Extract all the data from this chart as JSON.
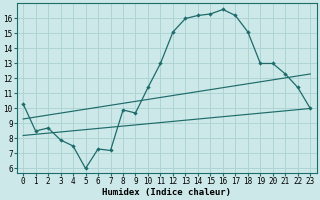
{
  "xlabel": "Humidex (Indice chaleur)",
  "bg_color": "#cce8e8",
  "line_color": "#1e6b6b",
  "grid_color": "#aed4d4",
  "xlim": [
    -0.5,
    23.5
  ],
  "ylim": [
    5.7,
    17.0
  ],
  "yticks": [
    6,
    7,
    8,
    9,
    10,
    11,
    12,
    13,
    14,
    15,
    16
  ],
  "xticks": [
    0,
    1,
    2,
    3,
    4,
    5,
    6,
    7,
    8,
    9,
    10,
    11,
    12,
    13,
    14,
    15,
    16,
    17,
    18,
    19,
    20,
    21,
    22,
    23
  ],
  "line1_x": [
    0,
    1,
    2,
    3,
    4,
    5,
    6,
    7,
    8,
    9,
    10,
    11,
    12,
    13,
    14,
    15,
    16,
    17,
    18,
    19,
    20,
    21,
    22,
    23
  ],
  "line1_y": [
    10.3,
    8.5,
    8.7,
    7.9,
    7.5,
    6.0,
    7.3,
    7.2,
    9.9,
    9.7,
    11.4,
    13.0,
    15.1,
    16.0,
    16.2,
    16.3,
    16.6,
    16.2,
    15.1,
    13.0,
    13.0,
    12.3,
    11.4,
    10.0
  ],
  "line2_x": [
    0,
    23
  ],
  "line2_y": [
    9.3,
    12.3
  ],
  "line3_x": [
    0,
    23
  ],
  "line3_y": [
    8.2,
    10.0
  ],
  "xlabel_fontsize": 6.5,
  "tick_fontsize": 5.5
}
